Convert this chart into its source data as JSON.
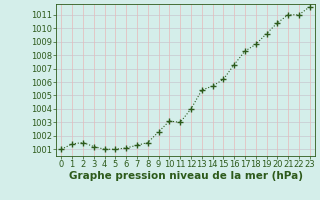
{
  "x": [
    0,
    1,
    2,
    3,
    4,
    5,
    6,
    7,
    8,
    9,
    10,
    11,
    12,
    13,
    14,
    15,
    16,
    17,
    18,
    19,
    20,
    21,
    22,
    23
  ],
  "y": [
    1001.0,
    1001.4,
    1001.5,
    1001.2,
    1001.0,
    1001.0,
    1001.1,
    1001.3,
    1001.5,
    1002.3,
    1003.1,
    1003.0,
    1004.0,
    1005.4,
    1005.7,
    1006.2,
    1007.3,
    1008.3,
    1008.8,
    1009.6,
    1010.4,
    1011.0,
    1011.0,
    1011.6
  ],
  "line_color": "#2d5a1b",
  "marker": "+",
  "marker_size": 4,
  "line_width": 0.8,
  "bg_color": "#d4eeea",
  "grid_color_h": "#c8c8d0",
  "grid_color_v": "#e8b8b8",
  "xlabel": "Graphe pression niveau de la mer (hPa)",
  "xlabel_fontsize": 7.5,
  "xlabel_color": "#2d5a1b",
  "tick_color": "#2d5a1b",
  "tick_fontsize": 6.0,
  "ylim": [
    1000.5,
    1011.8
  ],
  "yticks": [
    1001,
    1002,
    1003,
    1004,
    1005,
    1006,
    1007,
    1008,
    1009,
    1010,
    1011
  ],
  "xticks": [
    0,
    1,
    2,
    3,
    4,
    5,
    6,
    7,
    8,
    9,
    10,
    11,
    12,
    13,
    14,
    15,
    16,
    17,
    18,
    19,
    20,
    21,
    22,
    23
  ],
  "figsize": [
    3.2,
    2.0
  ],
  "dpi": 100
}
